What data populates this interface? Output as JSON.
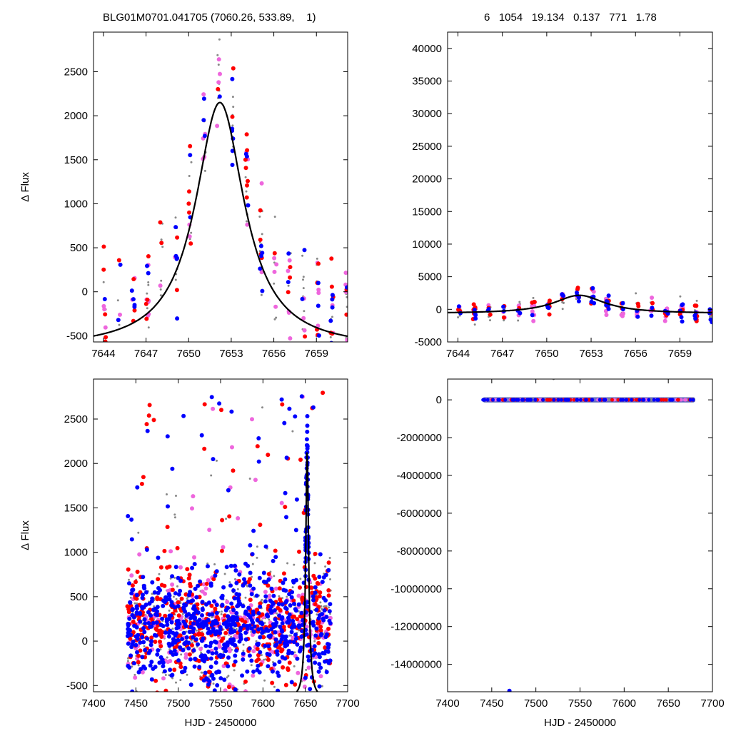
{
  "header": {
    "title_left": "BLG01M0701.041705 (7060.26, 533.89,    1)",
    "title_right": "6   1054   19.134   0.137   771   1.78"
  },
  "colors": {
    "series_a": "#ff0000",
    "series_b": "#0000ff",
    "series_c": "#ee66dd",
    "series_d": "#888888",
    "model": "#000000"
  },
  "chart_data": [
    {
      "id": "top-left",
      "type": "scatter",
      "xlabel": "",
      "ylabel": "Δ Flux",
      "xlim": [
        7643.3,
        7661.2
      ],
      "ylim": [
        -570,
        2950
      ],
      "xticks": [
        7644,
        7647,
        7650,
        7653,
        7656,
        7659
      ],
      "yticks": [
        -500,
        0,
        500,
        1000,
        1500,
        2000,
        2500
      ],
      "model": {
        "peak_x": 7652.2,
        "peak_y": 2150,
        "baseline": -650,
        "width": 2.1
      }
    },
    {
      "id": "top-right",
      "type": "scatter",
      "xlabel": "",
      "ylabel": "",
      "xlim": [
        7643.3,
        7661.2
      ],
      "ylim": [
        -5000,
        42500
      ],
      "xticks": [
        7644,
        7647,
        7650,
        7653,
        7656,
        7659
      ],
      "yticks": [
        -5000,
        0,
        5000,
        10000,
        15000,
        20000,
        25000,
        30000,
        35000,
        40000
      ],
      "model": {
        "peak_x": 7652.2,
        "peak_y": 2150,
        "baseline": -650,
        "width": 2.1
      }
    },
    {
      "id": "bottom-left",
      "type": "scatter",
      "xlabel": "HJD - 2450000",
      "ylabel": "Δ Flux",
      "xlim": [
        7400,
        7700
      ],
      "ylim": [
        -570,
        2950
      ],
      "xticks": [
        7400,
        7450,
        7500,
        7550,
        7600,
        7650,
        7700
      ],
      "yticks": [
        -500,
        0,
        500,
        1000,
        1500,
        2000,
        2500
      ],
      "data_x_range": [
        7440,
        7680
      ],
      "model": {
        "peak_x": 7652.2,
        "peak_y": 2150,
        "baseline": -650,
        "width": 2.1
      }
    },
    {
      "id": "bottom-right",
      "type": "scatter",
      "xlabel": "HJD - 2450000",
      "ylabel": "",
      "xlim": [
        7400,
        7700
      ],
      "ylim": [
        -15450000,
        1100000
      ],
      "xticks": [
        7400,
        7450,
        7500,
        7550,
        7600,
        7650,
        7700
      ],
      "yticks": [
        -14000000,
        -12000000,
        -10000000,
        -8000000,
        -6000000,
        -4000000,
        -2000000,
        0
      ],
      "data_x_range": [
        7440,
        7680
      ],
      "outliers": [
        {
          "x": 7470,
          "y": -15400000,
          "series": "series_b"
        },
        {
          "x": 7520,
          "y": 1100000,
          "series": "series_d"
        }
      ]
    }
  ]
}
